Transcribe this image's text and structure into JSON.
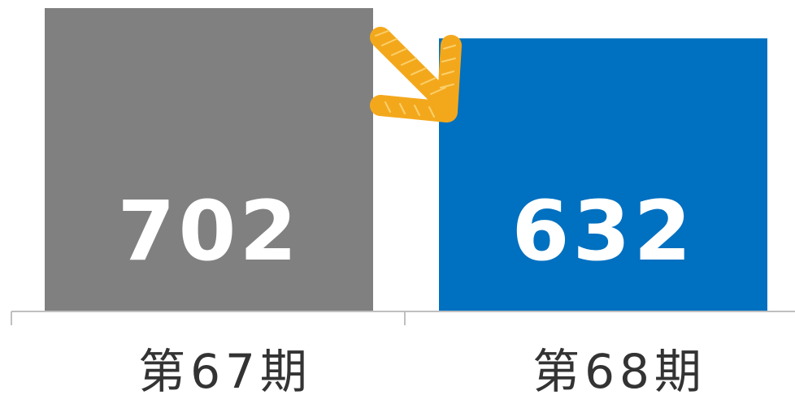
{
  "chart_data": {
    "type": "bar",
    "categories": [
      "第67期",
      "第68期"
    ],
    "values": [
      702,
      632
    ],
    "value_labels": [
      "702",
      "632"
    ],
    "bar_colors": [
      "#808080",
      "#0070c0"
    ],
    "ylim": [
      0,
      702
    ],
    "title": "",
    "xlabel": "",
    "ylabel": "",
    "grid": false,
    "legend": "none",
    "annotation": {
      "type": "arrow",
      "direction": "down-right",
      "color": "#f3a81c",
      "icon": "decrease-arrow-icon"
    }
  }
}
